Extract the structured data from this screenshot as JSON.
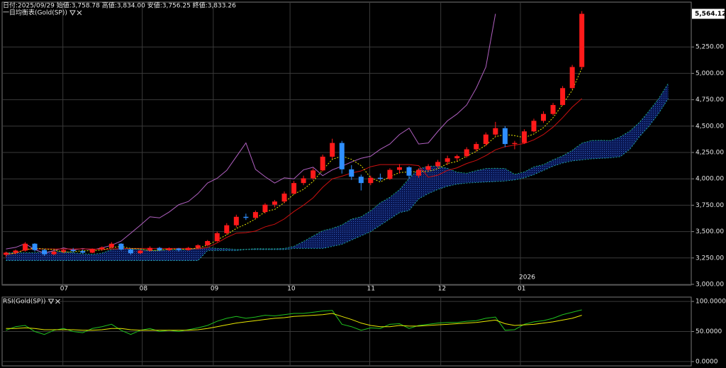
{
  "chart_data": [
    {
      "type": "candlestick",
      "info": "日付:2025/09/29 始値:3,758.78 高値:3,834.00 安値:3,756.25 終値:3,833.26",
      "title": "一目均衡表(Gold(SP))",
      "xlim": [
        -0.4,
        71.4
      ],
      "xticks": [
        {
          "value": 5.93,
          "label": "07"
        },
        {
          "value": 14.2,
          "label": "08"
        },
        {
          "value": 21.6,
          "label": "09"
        },
        {
          "value": 29.6,
          "label": "10"
        },
        {
          "value": 37.9,
          "label": "11"
        },
        {
          "value": 45.3,
          "label": "12"
        },
        {
          "value": 53.6,
          "label": "01"
        }
      ],
      "year_label": "2026",
      "ylim": [
        3000,
        5675
      ],
      "yticks": [
        {
          "value": 3000,
          "label": "3,000.00"
        },
        {
          "value": 3250,
          "label": "3,250.00"
        },
        {
          "value": 3500,
          "label": "3,500.00"
        },
        {
          "value": 3750,
          "label": "3,750.00"
        },
        {
          "value": 4000,
          "label": "4,000.00"
        },
        {
          "value": 4250,
          "label": "4,250.00"
        },
        {
          "value": 4500,
          "label": "4,500.00"
        },
        {
          "value": 4750,
          "label": "4,750.00"
        },
        {
          "value": 5000,
          "label": "5,000.00"
        },
        {
          "value": 5250,
          "label": "5,250.00"
        }
      ],
      "last_price": {
        "value": 5564.12,
        "label": "5,564.12"
      },
      "grid": true,
      "up_color": "#ff1a1a",
      "down_color": "#2f8fff",
      "open": [
        3280,
        3300,
        3320,
        3385,
        3325,
        3285,
        3310,
        3325,
        3315,
        3300,
        3335,
        3350,
        3385,
        3330,
        3295,
        3320,
        3345,
        3325,
        3340,
        3325,
        3345,
        3370,
        3410,
        3485,
        3560,
        3640,
        3630,
        3685,
        3755,
        3785,
        3860,
        3960,
        4005,
        4080,
        4210,
        4340,
        4090,
        4020,
        3960,
        4010,
        4000,
        4085,
        4110,
        4030,
        4085,
        4120,
        4160,
        4195,
        4215,
        4280,
        4330,
        4420,
        4480,
        4330,
        4340,
        4450,
        4550,
        4615,
        4700,
        4860,
        5060
      ],
      "high": [
        3310,
        3330,
        3400,
        3390,
        3335,
        3320,
        3335,
        3345,
        3330,
        3340,
        3360,
        3400,
        3390,
        3340,
        3330,
        3360,
        3355,
        3350,
        3345,
        3355,
        3380,
        3420,
        3500,
        3580,
        3660,
        3670,
        3700,
        3770,
        3800,
        3880,
        3980,
        4030,
        4100,
        4230,
        4380,
        4360,
        4130,
        4040,
        4030,
        4050,
        4100,
        4140,
        4120,
        4100,
        4140,
        4180,
        4220,
        4230,
        4300,
        4350,
        4440,
        4540,
        4500,
        4360,
        4470,
        4570,
        4640,
        4720,
        4880,
        5080,
        5590
      ],
      "low": [
        3260,
        3285,
        3310,
        3310,
        3270,
        3275,
        3295,
        3300,
        3290,
        3295,
        3320,
        3340,
        3320,
        3280,
        3285,
        3310,
        3315,
        3315,
        3310,
        3320,
        3340,
        3360,
        3400,
        3470,
        3540,
        3610,
        3620,
        3670,
        3730,
        3770,
        3850,
        3940,
        3990,
        4070,
        4190,
        4050,
        3990,
        3890,
        3940,
        3980,
        3990,
        4050,
        4000,
        4010,
        4070,
        4100,
        4130,
        4170,
        4200,
        4260,
        4310,
        4400,
        4300,
        4280,
        4330,
        4440,
        4530,
        4600,
        4690,
        4850,
        5040
      ],
      "close": [
        3300,
        3320,
        3385,
        3325,
        3285,
        3310,
        3325,
        3315,
        3300,
        3335,
        3350,
        3385,
        3330,
        3295,
        3320,
        3345,
        3325,
        3340,
        3325,
        3345,
        3370,
        3410,
        3485,
        3560,
        3640,
        3630,
        3685,
        3755,
        3785,
        3860,
        3960,
        4005,
        4080,
        4210,
        4340,
        4090,
        4020,
        3960,
        4010,
        4000,
        4085,
        4110,
        4030,
        4085,
        4120,
        4160,
        4195,
        4215,
        4280,
        4330,
        4420,
        4480,
        4330,
        4340,
        4450,
        4550,
        4615,
        4700,
        4860,
        5060,
        5564.12
      ],
      "cloud_color": "#0a1a5c",
      "series": [
        {
          "color": "#19a87a",
          "dash": true,
          "values": [
            3300,
            3300,
            3300,
            3300,
            3310,
            3310,
            3310,
            3300,
            3290,
            3285,
            3295,
            3330,
            3339,
            3335,
            3333,
            3319,
            3323,
            3327,
            3327,
            3328,
            3342,
            3349,
            3340,
            3338,
            3330,
            3332,
            3338,
            3337,
            3337,
            3340,
            3360,
            3407,
            3458,
            3508,
            3530,
            3563,
            3618,
            3640,
            3698,
            3773,
            3825,
            3898,
            4003,
            4093,
            4120,
            4120,
            4100,
            4063,
            4053,
            4078,
            4098,
            4100,
            4098,
            4043,
            4065,
            4113,
            4135,
            4180,
            4218,
            4270,
            4338,
            4363,
            4365,
            4363,
            4398,
            4453,
            4535,
            4643,
            4760,
            4905
          ]
        },
        {
          "color": "#1fa0a0",
          "dash": true,
          "values": [
            3225,
            3225,
            3225,
            3225,
            3225,
            3225,
            3225,
            3225,
            3225,
            3225,
            3225,
            3225,
            3225,
            3225,
            3225,
            3225,
            3225,
            3225,
            3225,
            3225,
            3225,
            3320,
            3320,
            3320,
            3320,
            3330,
            3330,
            3330,
            3330,
            3330,
            3340,
            3340,
            3340,
            3340,
            3360,
            3380,
            3420,
            3460,
            3500,
            3560,
            3620,
            3680,
            3700,
            3810,
            3860,
            3900,
            3930,
            3950,
            3960,
            3965,
            3970,
            3975,
            3980,
            3990,
            4010,
            4040,
            4080,
            4120,
            4150,
            4170,
            4180,
            4190,
            4195,
            4200,
            4210,
            4280,
            4400,
            4500,
            4620,
            4760
          ]
        },
        {
          "color": "#b060c0",
          "dash": false,
          "values": [
            3335,
            3350,
            3385,
            3330,
            3295,
            3320,
            3345,
            3325,
            3340,
            3325,
            3345,
            3370,
            3410,
            3485,
            3560,
            3640,
            3630,
            3685,
            3755,
            3785,
            3860,
            3960,
            4005,
            4080,
            4210,
            4340,
            4090,
            4020,
            3960,
            4010,
            4000,
            4085,
            4110,
            4030,
            4085,
            4120,
            4160,
            4195,
            4215,
            4280,
            4330,
            4420,
            4480,
            4330,
            4340,
            4450,
            4550,
            4615,
            4700,
            4860,
            5060,
            5564.12
          ]
        },
        {
          "color": "#cc1010",
          "dash": false,
          "values": [
            3285,
            3295,
            3330,
            3335,
            3335,
            3335,
            3335,
            3335,
            3335,
            3335,
            3330,
            3335,
            3338,
            3340,
            3340,
            3340,
            3340,
            3340,
            3340,
            3340,
            3335,
            3350,
            3393,
            3445,
            3485,
            3490,
            3505,
            3545,
            3570,
            3620,
            3690,
            3750,
            3820,
            3920,
            4000,
            4025,
            4055,
            4075,
            4115,
            4135,
            4135,
            4135,
            4135,
            4125,
            4015,
            4035,
            4080,
            4105,
            4145,
            4175,
            4220,
            4275,
            4305,
            4320,
            4335,
            4370,
            4420,
            4490,
            4580,
            4680,
            4760
          ]
        },
        {
          "color": "#e8e800",
          "dash": true,
          "values": [
            3285,
            3295,
            3330,
            3343,
            3335,
            3330,
            3303,
            3310,
            3318,
            3318,
            3325,
            3348,
            3360,
            3340,
            3335,
            3320,
            3323,
            3335,
            3333,
            3333,
            3345,
            3370,
            3420,
            3470,
            3530,
            3570,
            3620,
            3690,
            3710,
            3775,
            3855,
            3900,
            3975,
            4085,
            4185,
            4215,
            4185,
            4125,
            4010,
            3970,
            4020,
            4060,
            4065,
            4070,
            4070,
            4095,
            4145,
            4165,
            4215,
            4260,
            4320,
            4400,
            4420,
            4410,
            4390,
            4425,
            4485,
            4580,
            4705,
            4840,
            5050
          ]
        }
      ]
    },
    {
      "type": "line",
      "title": "RSI(Gold(SP))",
      "xlim": [
        -0.4,
        71.4
      ],
      "ylim": [
        -6,
        106
      ],
      "yticks": [
        {
          "value": 0,
          "label": "0.0000"
        },
        {
          "value": 50,
          "label": "50.0000"
        },
        {
          "value": 100,
          "label": "100.0000"
        }
      ],
      "grid": true,
      "series": [
        {
          "color": "#1fc01f",
          "values": [
            52,
            58,
            60,
            50,
            45,
            52,
            55,
            50,
            48,
            55,
            58,
            62,
            52,
            45,
            52,
            55,
            50,
            52,
            50,
            53,
            56,
            60,
            67,
            72,
            75,
            72,
            74,
            77,
            76,
            78,
            80,
            80,
            82,
            84,
            85,
            62,
            58,
            52,
            56,
            55,
            62,
            63,
            55,
            60,
            62,
            64,
            65,
            65,
            67,
            68,
            72,
            74,
            52,
            53,
            62,
            66,
            68,
            72,
            78,
            82,
            86
          ]
        },
        {
          "color": "#e8e800",
          "values": [
            55,
            55,
            56,
            55,
            53,
            53,
            53,
            53,
            52,
            52,
            53,
            55,
            55,
            53,
            52,
            52,
            52,
            52,
            52,
            52,
            53,
            55,
            58,
            61,
            64,
            66,
            68,
            70,
            72,
            73,
            75,
            76,
            77,
            78,
            80,
            75,
            70,
            64,
            60,
            58,
            58,
            60,
            59,
            59,
            60,
            61,
            62,
            63,
            64,
            65,
            67,
            69,
            63,
            60,
            61,
            62,
            64,
            66,
            69,
            72,
            77
          ]
        }
      ]
    }
  ]
}
